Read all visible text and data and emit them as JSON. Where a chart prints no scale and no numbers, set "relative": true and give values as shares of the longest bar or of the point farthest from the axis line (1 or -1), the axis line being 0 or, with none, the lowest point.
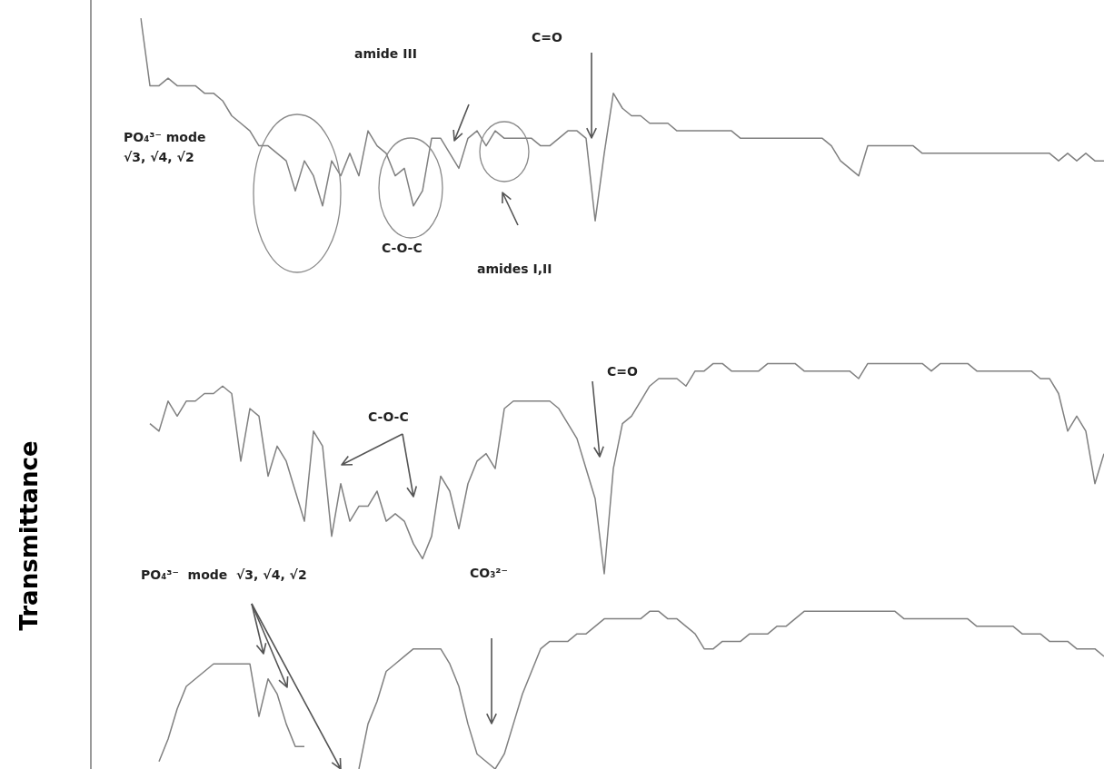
{
  "chart_data": {
    "type": "line",
    "relative": true,
    "ylabel": "Transmittance",
    "categories": [
      null,
      null,
      null,
      null,
      null,
      null,
      null,
      null,
      null,
      null,
      null,
      null,
      null,
      null,
      null,
      null,
      null,
      null,
      null,
      null,
      null,
      null,
      null,
      null,
      null,
      null,
      null,
      null,
      null,
      null,
      null,
      null,
      null,
      null,
      null,
      null,
      null,
      null,
      null,
      null,
      null,
      null,
      null,
      null,
      null,
      null,
      null,
      null,
      null,
      null,
      null,
      null,
      null,
      null,
      null,
      null,
      null,
      null,
      null,
      null,
      null,
      null,
      null,
      null,
      null,
      null,
      null,
      null,
      null,
      null,
      null,
      null,
      null,
      null,
      null,
      null,
      null,
      null,
      null,
      null,
      null,
      null,
      null,
      null,
      null,
      null,
      null,
      null,
      null,
      null,
      null,
      null,
      null,
      null,
      null,
      null,
      null,
      null,
      null,
      null,
      null,
      null,
      null,
      null,
      null,
      null,
      null
    ],
    "series": [
      {
        "color": "#808080",
        "values": [
          1.0,
          0.91,
          0.91,
          0.92,
          0.91,
          0.91,
          0.91,
          0.9,
          0.9,
          0.89,
          0.87,
          0.86,
          0.85,
          0.83,
          0.83,
          0.82,
          0.81,
          0.77,
          0.81,
          0.79,
          0.75,
          0.81,
          0.79,
          0.82,
          0.79,
          0.85,
          0.83,
          0.82,
          0.79,
          0.8,
          0.75,
          0.77,
          0.84,
          0.84,
          0.82,
          0.8,
          0.84,
          0.85,
          0.83,
          0.85,
          0.84,
          0.84,
          0.84,
          0.84,
          0.83,
          0.83,
          0.84,
          0.85,
          0.85,
          0.84,
          0.73,
          0.82,
          0.9,
          0.88,
          0.87,
          0.87,
          0.86,
          0.86,
          0.86,
          0.85,
          0.85,
          0.85,
          0.85,
          0.85,
          0.85,
          0.85,
          0.84,
          0.84,
          0.84,
          0.84,
          0.84,
          0.84,
          0.84,
          0.84,
          0.84,
          0.84,
          0.83,
          0.81,
          0.8,
          0.79,
          0.83,
          0.83,
          0.83,
          0.83,
          0.83,
          0.83,
          0.82,
          0.82,
          0.82,
          0.82,
          0.82,
          0.82,
          0.82,
          0.82,
          0.82,
          0.82,
          0.82,
          0.82,
          0.82,
          0.82,
          0.82,
          0.81,
          0.82,
          0.81,
          0.82,
          0.81,
          0.81
        ]
      },
      {
        "color": "#808080",
        "values": [
          null,
          0.46,
          0.45,
          0.49,
          0.47,
          0.49,
          0.49,
          0.5,
          0.5,
          0.51,
          0.5,
          0.41,
          0.48,
          0.47,
          0.39,
          0.43,
          0.41,
          0.37,
          0.33,
          0.45,
          0.43,
          0.31,
          0.38,
          0.33,
          0.35,
          0.35,
          0.37,
          0.33,
          0.34,
          0.33,
          0.3,
          0.28,
          0.31,
          0.39,
          0.37,
          0.32,
          0.38,
          0.41,
          0.42,
          0.4,
          0.48,
          0.49,
          0.49,
          0.49,
          0.49,
          0.49,
          0.48,
          0.46,
          0.44,
          0.4,
          0.36,
          0.26,
          0.4,
          0.46,
          0.47,
          0.49,
          0.51,
          0.52,
          0.52,
          0.52,
          0.51,
          0.53,
          0.53,
          0.54,
          0.54,
          0.53,
          0.53,
          0.53,
          0.53,
          0.54,
          0.54,
          0.54,
          0.54,
          0.53,
          0.53,
          0.53,
          0.53,
          0.53,
          0.53,
          0.52,
          0.54,
          0.54,
          0.54,
          0.54,
          0.54,
          0.54,
          0.54,
          0.53,
          0.54,
          0.54,
          0.54,
          0.54,
          0.53,
          0.53,
          0.53,
          0.53,
          0.53,
          0.53,
          0.53,
          0.52,
          0.52,
          0.5,
          0.45,
          0.47,
          0.45,
          0.38,
          0.42
        ]
      },
      {
        "color": "#808080",
        "values": [
          null,
          null,
          0.01,
          0.04,
          0.08,
          0.11,
          0.12,
          0.13,
          0.14,
          0.14,
          0.14,
          0.14,
          0.14,
          0.07,
          0.12,
          0.1,
          0.06,
          0.03,
          0.03,
          null,
          null,
          null,
          null,
          null,
          0.0,
          0.06,
          0.09,
          0.13,
          0.14,
          0.15,
          0.16,
          0.16,
          0.16,
          0.16,
          0.14,
          0.11,
          0.06,
          0.02,
          0.01,
          0.0,
          0.02,
          0.06,
          0.1,
          0.13,
          0.16,
          0.17,
          0.17,
          0.17,
          0.18,
          0.18,
          0.19,
          0.2,
          0.2,
          0.2,
          0.2,
          0.2,
          0.21,
          0.21,
          0.2,
          0.2,
          0.19,
          0.18,
          0.16,
          0.16,
          0.17,
          0.17,
          0.17,
          0.18,
          0.18,
          0.18,
          0.19,
          0.19,
          0.2,
          0.21,
          0.21,
          0.21,
          0.21,
          0.21,
          0.21,
          0.21,
          0.21,
          0.21,
          0.21,
          0.21,
          0.2,
          0.2,
          0.2,
          0.2,
          0.2,
          0.2,
          0.2,
          0.2,
          0.19,
          0.19,
          0.19,
          0.19,
          0.19,
          0.18,
          0.18,
          0.18,
          0.17,
          0.17,
          0.17,
          0.16,
          0.16,
          0.16,
          0.15
        ]
      }
    ],
    "annotations": [
      "C=O",
      "amide III",
      "PO₄³⁻ mode\n√3, √4, √2",
      "C-O-C",
      "amides I,II",
      "C=O",
      "C-O-C",
      "PO₄³⁻  mode  √3, √4, √2",
      "CO₃²⁻"
    ]
  }
}
